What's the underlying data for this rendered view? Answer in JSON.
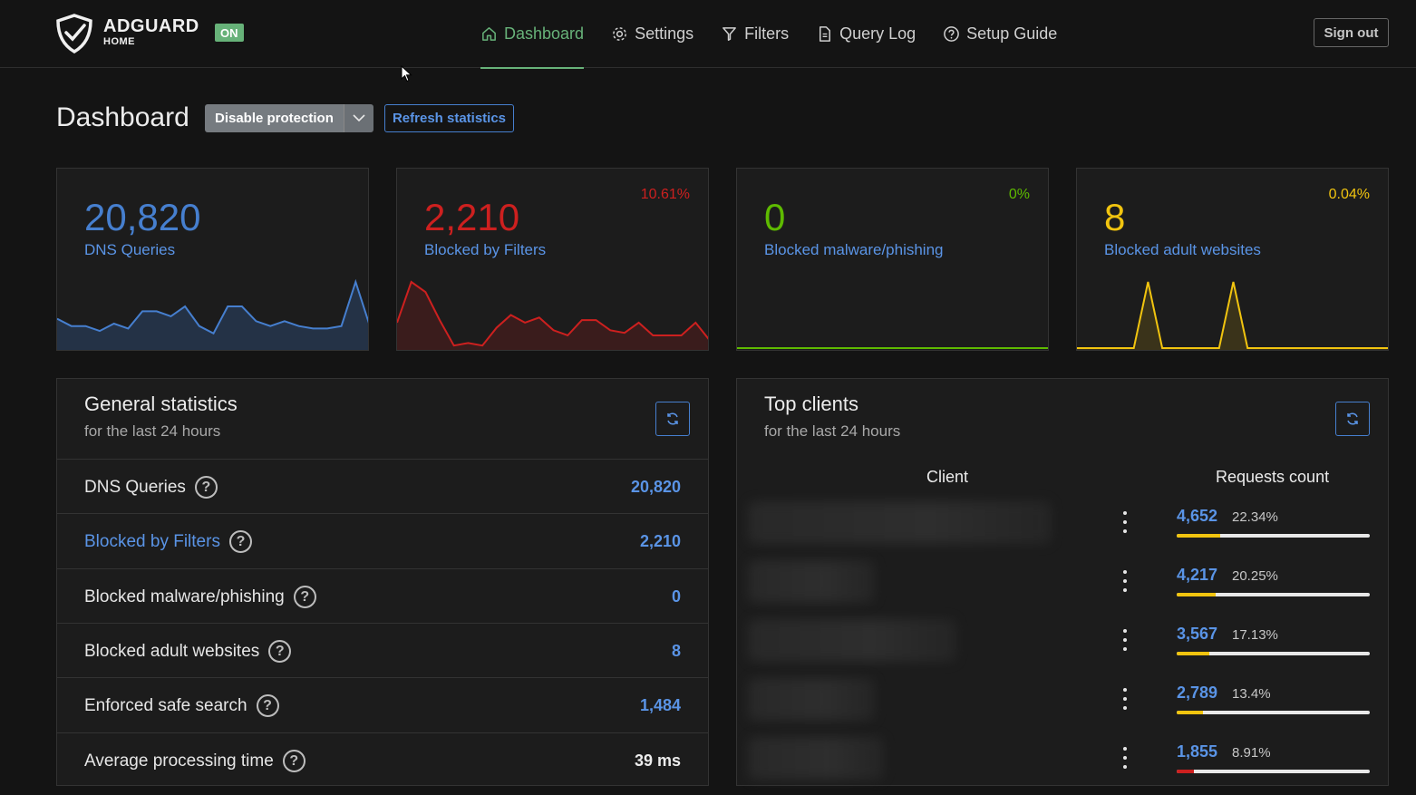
{
  "header": {
    "brand": "ADGUARD",
    "brand_sub": "HOME",
    "status_badge": "ON",
    "nav": [
      {
        "label": "Dashboard",
        "icon": "home-icon",
        "active": true
      },
      {
        "label": "Settings",
        "icon": "gear-icon",
        "active": false
      },
      {
        "label": "Filters",
        "icon": "filter-icon",
        "active": false
      },
      {
        "label": "Query Log",
        "icon": "document-icon",
        "active": false
      },
      {
        "label": "Setup Guide",
        "icon": "help-circle-icon",
        "active": false
      }
    ],
    "sign_out": "Sign out"
  },
  "page": {
    "title": "Dashboard",
    "disable_protection": "Disable protection",
    "refresh_statistics": "Refresh statistics"
  },
  "cards": [
    {
      "value": "20,820",
      "label": "DNS Queries",
      "percent": "",
      "color": "#467fcf",
      "fill": "#243246",
      "series": [
        12,
        9,
        9,
        7,
        10,
        8,
        15,
        15,
        13,
        17,
        9,
        6,
        17,
        17,
        11,
        9,
        11,
        9,
        8,
        8,
        9,
        27,
        9
      ]
    },
    {
      "value": "2,210",
      "label": "Blocked by Filters",
      "percent": "10.61%",
      "color": "#cd201f",
      "fill": "#3a1c1c",
      "series": [
        10,
        26,
        22,
        11,
        1,
        2,
        1,
        8,
        13,
        10,
        12,
        7,
        5,
        11,
        11,
        7,
        6,
        10,
        5,
        5,
        5,
        10,
        3
      ]
    },
    {
      "value": "0",
      "label": "Blocked malware/phishing",
      "percent": "0%",
      "color": "#5eba00",
      "fill": "#1c1c1c",
      "series": [
        0,
        0,
        0,
        0,
        0,
        0,
        0,
        0,
        0,
        0,
        0,
        0,
        0,
        0,
        0,
        0,
        0,
        0,
        0,
        0,
        0,
        0,
        0
      ]
    },
    {
      "value": "8",
      "label": "Blocked adult websites",
      "percent": "0.04%",
      "color": "#f1c40f",
      "fill": "#3a331a",
      "series": [
        0,
        0,
        0,
        0,
        0,
        4,
        0,
        0,
        0,
        0,
        0,
        4,
        0,
        0,
        0,
        0,
        0,
        0,
        0,
        0,
        0,
        0,
        0
      ]
    }
  ],
  "general": {
    "title": "General statistics",
    "subtitle": "for the last 24 hours",
    "rows": [
      {
        "label": "DNS Queries",
        "value": "20,820"
      },
      {
        "label": "Blocked by Filters",
        "value": "2,210"
      },
      {
        "label": "Blocked malware/phishing",
        "value": "0"
      },
      {
        "label": "Blocked adult websites",
        "value": "8"
      },
      {
        "label": "Enforced safe search",
        "value": "1,484"
      },
      {
        "label": "Average processing time",
        "value": "39 ms"
      }
    ]
  },
  "top_clients": {
    "title": "Top clients",
    "subtitle": "for the last 24 hours",
    "col_client": "Client",
    "col_requests": "Requests count",
    "rows": [
      {
        "count": "4,652",
        "percent": "22.34%",
        "fraction": 0.2234,
        "bar_color": "#f1c40f"
      },
      {
        "count": "4,217",
        "percent": "20.25%",
        "fraction": 0.2025,
        "bar_color": "#f1c40f"
      },
      {
        "count": "3,567",
        "percent": "17.13%",
        "fraction": 0.1713,
        "bar_color": "#f1c40f"
      },
      {
        "count": "2,789",
        "percent": "13.4%",
        "fraction": 0.134,
        "bar_color": "#f1c40f"
      },
      {
        "count": "1,855",
        "percent": "8.91%",
        "fraction": 0.0891,
        "bar_color": "#cd201f"
      }
    ]
  }
}
